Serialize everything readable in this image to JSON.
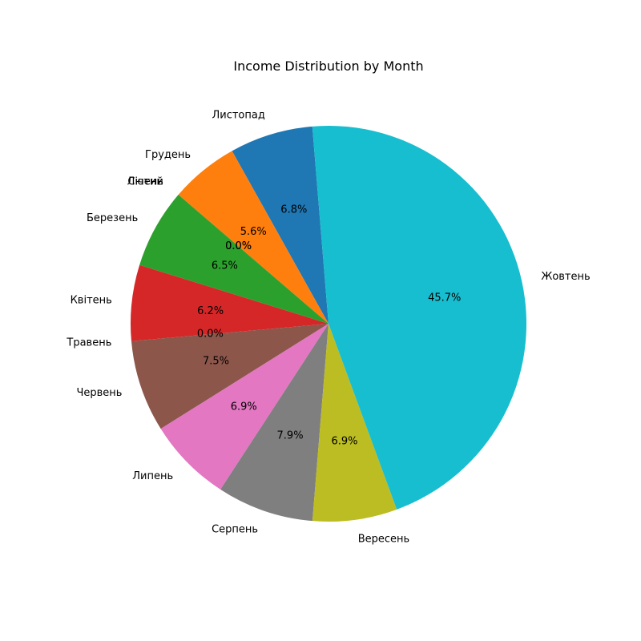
{
  "chart_data": {
    "type": "pie",
    "title": "Income Distribution by Month",
    "start_label": "Листопад",
    "counterclockwise": true,
    "slices": [
      {
        "label": "Листопад",
        "percent": 6.8,
        "color": "#1f77b4"
      },
      {
        "label": "Грудень",
        "percent": 5.6,
        "color": "#ff7f0e"
      },
      {
        "label": "Січень",
        "percent": 0.0,
        "color": "#279e68"
      },
      {
        "label": "Лютий",
        "percent": 0.0,
        "color": "#d62728"
      },
      {
        "label": "Березень",
        "percent": 6.5,
        "color": "#2ca02c"
      },
      {
        "label": "Квітень",
        "percent": 6.2,
        "color": "#d62728"
      },
      {
        "label": "Травень",
        "percent": 0.0,
        "color": "#9467bd"
      },
      {
        "label": "Червень",
        "percent": 7.5,
        "color": "#8c564b"
      },
      {
        "label": "Липень",
        "percent": 6.9,
        "color": "#e377c2"
      },
      {
        "label": "Серпень",
        "percent": 7.9,
        "color": "#7f7f7f"
      },
      {
        "label": "Вересень",
        "percent": 6.9,
        "color": "#bcbd22"
      },
      {
        "label": "Жовтень",
        "percent": 45.7,
        "color": "#17becf"
      }
    ],
    "percent_labels": [
      "6.8%",
      "5.6%",
      "0.0%",
      "0.0%",
      "6.5%",
      "6.2%",
      "0.0%",
      "7.5%",
      "6.9%",
      "7.9%",
      "6.9%",
      "45.7%"
    ]
  }
}
